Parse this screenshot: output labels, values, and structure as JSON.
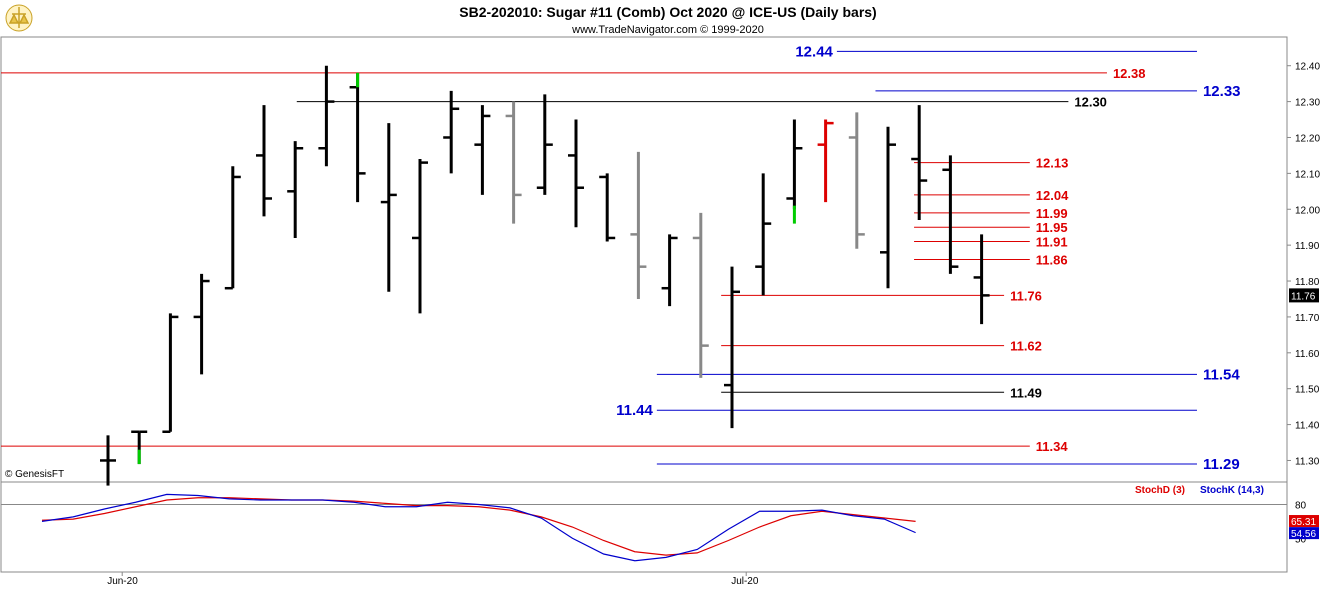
{
  "header": {
    "title": "SB2-202010:  Sugar #11 (Comb) Oct 2020 @ ICE-US  (Daily bars)",
    "subtitle": "www.TradeNavigator.com © 1999-2020",
    "watermark": "© GenesisFT"
  },
  "colors": {
    "black": "#000000",
    "gray": "#888888",
    "green": "#00cc00",
    "red": "#dd0000",
    "blue": "#0000cc",
    "stochD": "#dd0000",
    "stochK": "#0000cc"
  },
  "chart_data": [
    {
      "type": "ohlc",
      "ylim": [
        11.24,
        12.48
      ],
      "yticks": [
        "12.40",
        "12.30",
        "12.20",
        "12.10",
        "12.00",
        "11.90",
        "11.80",
        "11.70",
        "11.60",
        "11.50",
        "11.40",
        "11.30"
      ],
      "last_price": "11.76",
      "x_labels": [
        {
          "label": "Jun-20",
          "bar": 1
        },
        {
          "label": "Jul-20",
          "bar": 21
        }
      ],
      "bars": [
        {
          "o": 11.3,
          "h": 11.37,
          "l": 11.23,
          "c": 11.3,
          "color": "black"
        },
        {
          "o": 11.38,
          "h": 11.38,
          "l": 11.29,
          "c": 11.38,
          "color": "black",
          "hl_color": "green",
          "hl": [
            11.29,
            11.33
          ]
        },
        {
          "o": 11.38,
          "h": 11.71,
          "l": 11.38,
          "c": 11.7,
          "color": "black"
        },
        {
          "o": 11.7,
          "h": 11.82,
          "l": 11.54,
          "c": 11.8,
          "color": "black"
        },
        {
          "o": 11.78,
          "h": 12.12,
          "l": 11.78,
          "c": 12.09,
          "color": "black"
        },
        {
          "o": 12.15,
          "h": 12.29,
          "l": 11.98,
          "c": 12.03,
          "color": "black"
        },
        {
          "o": 12.05,
          "h": 12.19,
          "l": 11.92,
          "c": 12.17,
          "color": "black"
        },
        {
          "o": 12.17,
          "h": 12.4,
          "l": 12.12,
          "c": 12.3,
          "color": "black"
        },
        {
          "o": 12.34,
          "h": 12.38,
          "l": 12.02,
          "c": 12.1,
          "color": "black",
          "hl_color": "green",
          "hl": [
            12.34,
            12.38
          ]
        },
        {
          "o": 12.02,
          "h": 12.24,
          "l": 11.77,
          "c": 12.04,
          "color": "black"
        },
        {
          "o": 11.92,
          "h": 12.14,
          "l": 11.71,
          "c": 12.13,
          "color": "black"
        },
        {
          "o": 12.2,
          "h": 12.33,
          "l": 12.1,
          "c": 12.28,
          "color": "black"
        },
        {
          "o": 12.18,
          "h": 12.29,
          "l": 12.04,
          "c": 12.26,
          "color": "black"
        },
        {
          "o": 12.26,
          "h": 12.3,
          "l": 11.96,
          "c": 12.04,
          "color": "gray"
        },
        {
          "o": 12.06,
          "h": 12.32,
          "l": 12.04,
          "c": 12.18,
          "color": "black"
        },
        {
          "o": 12.15,
          "h": 12.25,
          "l": 11.95,
          "c": 12.06,
          "color": "black"
        },
        {
          "o": 12.09,
          "h": 12.1,
          "l": 11.91,
          "c": 11.92,
          "color": "black"
        },
        {
          "o": 11.93,
          "h": 12.16,
          "l": 11.75,
          "c": 11.84,
          "color": "gray"
        },
        {
          "o": 11.78,
          "h": 11.93,
          "l": 11.73,
          "c": 11.92,
          "color": "black"
        },
        {
          "o": 11.92,
          "h": 11.99,
          "l": 11.53,
          "c": 11.62,
          "color": "gray"
        },
        {
          "o": 11.51,
          "h": 11.84,
          "l": 11.39,
          "c": 11.77,
          "color": "black"
        },
        {
          "o": 11.84,
          "h": 12.1,
          "l": 11.76,
          "c": 11.96,
          "color": "black"
        },
        {
          "o": 12.03,
          "h": 12.25,
          "l": 12.0,
          "c": 12.17,
          "color": "black",
          "hl_color": "green",
          "hl": [
            11.96,
            12.01
          ]
        },
        {
          "o": 12.18,
          "h": 12.25,
          "l": 12.02,
          "c": 12.24,
          "color": "red"
        },
        {
          "o": 12.2,
          "h": 12.27,
          "l": 11.89,
          "c": 11.93,
          "color": "gray"
        },
        {
          "o": 11.88,
          "h": 12.23,
          "l": 11.78,
          "c": 12.18,
          "color": "black"
        },
        {
          "o": 12.14,
          "h": 12.29,
          "l": 11.97,
          "c": 12.08,
          "color": "black"
        },
        {
          "o": 12.11,
          "h": 12.15,
          "l": 11.82,
          "c": 11.84,
          "color": "black"
        },
        {
          "o": 11.81,
          "h": 11.93,
          "l": 11.68,
          "c": 11.76,
          "color": "black"
        }
      ],
      "levels": [
        {
          "value": 12.44,
          "label": "12.44",
          "color": "blue",
          "x0": 0.65,
          "x1": 0.93,
          "label_side": "left"
        },
        {
          "value": 12.38,
          "label": "12.38",
          "color": "red",
          "x0": 0.0,
          "x1": 0.86,
          "label_side": "right"
        },
        {
          "value": 12.33,
          "label": "12.33",
          "color": "blue",
          "x0": 0.68,
          "x1": 0.93,
          "label_side": "right"
        },
        {
          "value": 12.3,
          "label": "12.30",
          "color": "black",
          "x0": 0.23,
          "x1": 0.83,
          "label_side": "right"
        },
        {
          "value": 12.13,
          "label": "12.13",
          "color": "red",
          "x0": 0.71,
          "x1": 0.8,
          "label_side": "right"
        },
        {
          "value": 12.04,
          "label": "12.04",
          "color": "red",
          "x0": 0.71,
          "x1": 0.8,
          "label_side": "right"
        },
        {
          "value": 11.99,
          "label": "11.99",
          "color": "red",
          "x0": 0.71,
          "x1": 0.8,
          "label_side": "right"
        },
        {
          "value": 11.95,
          "label": "11.95",
          "color": "red",
          "x0": 0.71,
          "x1": 0.8,
          "label_side": "right"
        },
        {
          "value": 11.91,
          "label": "11.91",
          "color": "red",
          "x0": 0.71,
          "x1": 0.8,
          "label_side": "right"
        },
        {
          "value": 11.86,
          "label": "11.86",
          "color": "red",
          "x0": 0.71,
          "x1": 0.8,
          "label_side": "right"
        },
        {
          "value": 11.76,
          "label": "11.76",
          "color": "red",
          "x0": 0.56,
          "x1": 0.78,
          "label_side": "right"
        },
        {
          "value": 11.62,
          "label": "11.62",
          "color": "red",
          "x0": 0.56,
          "x1": 0.78,
          "label_side": "right"
        },
        {
          "value": 11.54,
          "label": "11.54",
          "color": "blue",
          "x0": 0.51,
          "x1": 0.93,
          "label_side": "right"
        },
        {
          "value": 11.49,
          "label": "11.49",
          "color": "black",
          "x0": 0.56,
          "x1": 0.78,
          "label_side": "right"
        },
        {
          "value": 11.44,
          "label": "11.44",
          "color": "blue",
          "x0": 0.51,
          "x1": 0.93,
          "label_side": "left"
        },
        {
          "value": 11.34,
          "label": "11.34",
          "color": "red",
          "x0": 0.0,
          "x1": 0.8,
          "label_side": "right"
        },
        {
          "value": 11.29,
          "label": "11.29",
          "color": "blue",
          "x0": 0.51,
          "x1": 0.93,
          "label_side": "right"
        }
      ]
    },
    {
      "type": "line",
      "title": "StochD (3)  StochK (14,3)",
      "legend": [
        {
          "name": "StochD (3)",
          "color": "stochD"
        },
        {
          "name": "StochK (14,3)",
          "color": "stochK"
        }
      ],
      "ylim": [
        0,
        100
      ],
      "ytick_label": "80",
      "ytick_value": 80,
      "bottom_tick": "50",
      "bottom_tick_value": 50,
      "readouts": [
        {
          "label": "65.31",
          "value": 65.31,
          "color": "stochD"
        },
        {
          "label": "54.56",
          "value": 54.56,
          "color": "stochK"
        }
      ],
      "series": [
        {
          "name": "StochD (3)",
          "color": "stochD",
          "values": [
            66,
            67,
            72,
            78,
            84,
            86,
            86,
            85,
            84,
            84,
            83,
            81,
            79,
            79,
            78,
            75,
            69,
            60,
            48,
            38,
            35,
            37,
            48,
            60,
            70,
            74,
            71,
            68,
            65
          ]
        },
        {
          "name": "StochK (14,3)",
          "color": "stochK",
          "values": [
            65,
            69,
            76,
            82,
            89,
            88,
            85,
            84,
            84,
            84,
            82,
            78,
            78,
            82,
            80,
            77,
            68,
            50,
            36,
            30,
            33,
            40,
            58,
            74,
            74,
            75,
            70,
            67,
            55
          ]
        }
      ]
    }
  ]
}
